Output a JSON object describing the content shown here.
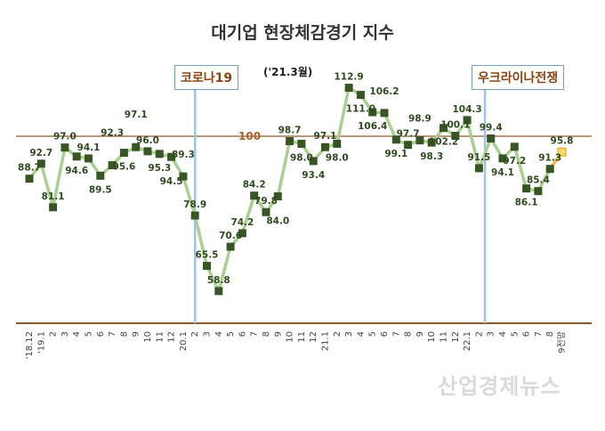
{
  "chart_data": {
    "type": "line",
    "title": "대기업 현장체감경기 지수",
    "categories": [
      "'18.12",
      "'19.1",
      "2",
      "3",
      "4",
      "5",
      "6",
      "7",
      "8",
      "9",
      "10",
      "11",
      "12",
      "20.1",
      "2",
      "3",
      "4",
      "5",
      "6",
      "7",
      "8",
      "9",
      "10",
      "11",
      "12",
      "21.1",
      "2",
      "3",
      "4",
      "5",
      "6",
      "7",
      "8",
      "9",
      "10",
      "11",
      "12",
      "22.1",
      "2",
      "3",
      "4",
      "5",
      "6",
      "7",
      "8",
      "9전망"
    ],
    "values": [
      88.7,
      92.7,
      81.1,
      97.0,
      94.6,
      94.1,
      89.5,
      92.3,
      95.6,
      97.1,
      96.0,
      95.3,
      94.5,
      89.3,
      78.9,
      65.5,
      58.8,
      70.6,
      74.2,
      84.2,
      79.8,
      84.0,
      98.7,
      98.0,
      93.4,
      97.1,
      98.0,
      112.9,
      111.0,
      106.4,
      106.2,
      99.1,
      97.7,
      98.9,
      98.3,
      102.2,
      100.1,
      104.3,
      91.5,
      99.4,
      94.1,
      97.2,
      86.1,
      85.4,
      91.3,
      95.8
    ],
    "forecast_last_point": true,
    "reference_line": {
      "value": 100,
      "label": "100"
    },
    "annotations": {
      "covid": "코로나19",
      "ukraine": "우크라이나전쟁",
      "peak_note": "('21.3월)"
    },
    "ylim": [
      50,
      115
    ],
    "grid": false,
    "colors": {
      "line": "#a9d18e",
      "marker": "#375623",
      "forecast_line": "#f4b942",
      "forecast_marker": "#ffd966",
      "reference": "#8b5a2b",
      "event_line": "#9dc3e6",
      "axis": "#8b5a2b"
    }
  },
  "watermark": "산업경제뉴스"
}
